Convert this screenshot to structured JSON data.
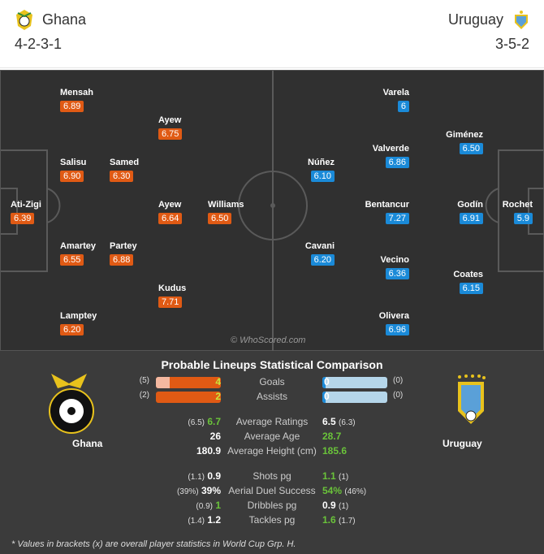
{
  "home": {
    "name": "Ghana",
    "formation": "4-2-3-1",
    "color": "#e05a14"
  },
  "away": {
    "name": "Uruguay",
    "formation": "3-5-2",
    "color": "#1a8ad8"
  },
  "home_players": [
    {
      "name": "Mensah",
      "rating": "6.89"
    },
    {
      "name": "Ayew",
      "rating": "6.75"
    },
    {
      "name": "Salisu",
      "rating": "6.90"
    },
    {
      "name": "Samed",
      "rating": "6.30"
    },
    {
      "name": "Ati-Zigi",
      "rating": "6.39"
    },
    {
      "name": "Ayew",
      "rating": "6.64"
    },
    {
      "name": "Williams",
      "rating": "6.50"
    },
    {
      "name": "Amartey",
      "rating": "6.55"
    },
    {
      "name": "Partey",
      "rating": "6.88"
    },
    {
      "name": "Kudus",
      "rating": "7.71"
    },
    {
      "name": "Lamptey",
      "rating": "6.20"
    }
  ],
  "away_players": [
    {
      "name": "Varela",
      "rating": "6"
    },
    {
      "name": "Giménez",
      "rating": "6.50"
    },
    {
      "name": "Valverde",
      "rating": "6.86"
    },
    {
      "name": "Núñez",
      "rating": "6.10"
    },
    {
      "name": "Bentancur",
      "rating": "7.27"
    },
    {
      "name": "Godín",
      "rating": "6.91"
    },
    {
      "name": "Rochet",
      "rating": "5.9"
    },
    {
      "name": "Cavani",
      "rating": "6.20"
    },
    {
      "name": "Vecino",
      "rating": "6.36"
    },
    {
      "name": "Coates",
      "rating": "6.15"
    },
    {
      "name": "Olivera",
      "rating": "6.96"
    }
  ],
  "watermark": "© WhoScored.com",
  "comparison": {
    "title": "Probable Lineups Statistical Comparison",
    "bars": [
      {
        "label": "Goals",
        "home": "4",
        "home_overall": "(5)",
        "away": "0",
        "away_overall": "(0)"
      },
      {
        "label": "Assists",
        "home": "2",
        "home_overall": "(2)",
        "away": "0",
        "away_overall": "(0)"
      }
    ],
    "rows": [
      {
        "label": "Average Ratings",
        "home": "6.7",
        "home_overall": "(6.5)",
        "away": "6.5",
        "away_overall": "(6.3)",
        "better": "home"
      },
      {
        "label": "Average Age",
        "home": "26",
        "home_overall": "",
        "away": "28.7",
        "away_overall": "",
        "better": "away"
      },
      {
        "label": "Average Height (cm)",
        "home": "180.9",
        "home_overall": "",
        "away": "185.6",
        "away_overall": "",
        "better": "away"
      },
      {
        "label": "Shots pg",
        "home": "0.9",
        "home_overall": "(1.1)",
        "away": "1.1",
        "away_overall": "(1)",
        "better": "away"
      },
      {
        "label": "Aerial Duel Success",
        "home": "39%",
        "home_overall": "(39%)",
        "away": "54%",
        "away_overall": "(46%)",
        "better": "away"
      },
      {
        "label": "Dribbles pg",
        "home": "1",
        "home_overall": "(0.9)",
        "away": "0.9",
        "away_overall": "(1)",
        "better": "home"
      },
      {
        "label": "Tackles pg",
        "home": "1.2",
        "home_overall": "(1.4)",
        "away": "1.6",
        "away_overall": "(1.7)",
        "better": "away"
      }
    ],
    "footnote": "* Values in brackets (x) are overall player statistics in World Cup Grp. H."
  }
}
